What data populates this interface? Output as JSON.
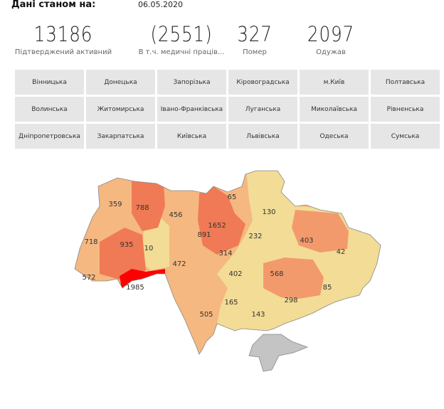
{
  "header": {
    "label": "Дані станом на:",
    "date": "06.05.2020"
  },
  "kpis": [
    {
      "value": "13186",
      "caption": "Підтверджений активний"
    },
    {
      "value": "(2551)",
      "caption": "В т.ч. медичні праців..."
    },
    {
      "value": "327",
      "caption": "Помер"
    },
    {
      "value": "2097",
      "caption": "Одужав"
    }
  ],
  "regions": [
    "Вінницька",
    "Донецька",
    "Запорізька",
    "Кіровоградська",
    "м.Київ",
    "Полтавська",
    "Волинська",
    "Житомирська",
    "Івано-Франківська",
    "Луганська",
    "Миколаївська",
    "Рівненська",
    "Дніпропетровська",
    "Закарпатська",
    "Київська",
    "Львівська",
    "Одеська",
    "Сумська"
  ],
  "map": {
    "colors": {
      "high": "#ff0000",
      "mid_high": "#f07a55",
      "mid": "#f39a6c",
      "low": "#f5b880",
      "lowest": "#f2dc96",
      "no_data": "#c4c4c4"
    },
    "labels": [
      "359",
      "788",
      "456",
      "65",
      "130",
      "1652",
      "891",
      "232",
      "403",
      "718",
      "935",
      "10",
      "42",
      "314",
      "472",
      "402",
      "568",
      "572",
      "1985",
      "85",
      "298",
      "165",
      "143",
      "505"
    ]
  }
}
